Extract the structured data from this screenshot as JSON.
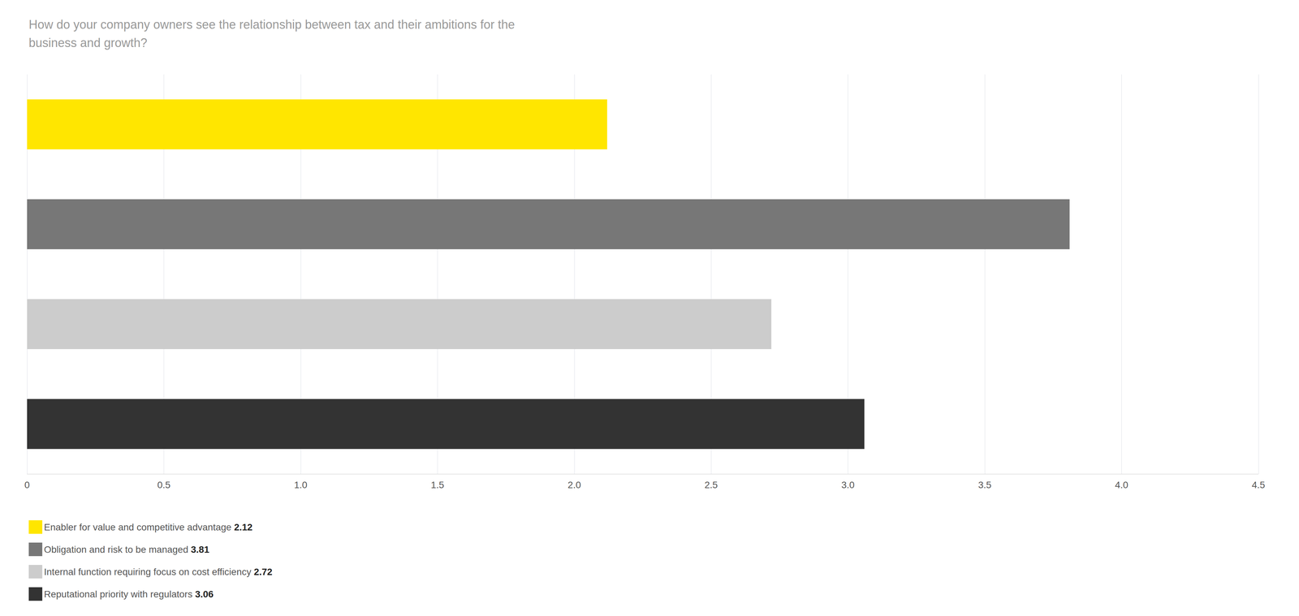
{
  "chart_data": {
    "type": "bar",
    "orientation": "horizontal",
    "title": "How do your company owners see the relationship between tax and their ambitions for the\nbusiness and growth?",
    "categories": [
      "Enabler for value and competitive advantage",
      "Obligation and risk to be managed",
      "Internal function requiring focus on cost efficiency",
      "Reputational priority with regulators"
    ],
    "values": [
      2.12,
      3.81,
      2.72,
      3.06
    ],
    "colors": [
      "#FFE600",
      "#777777",
      "#CCCCCC",
      "#333333"
    ],
    "xlim": [
      0,
      4.5
    ],
    "xticks": [
      0,
      0.5,
      {
        "value": 1,
        "label": "1.0"
      },
      1.5,
      {
        "value": 2,
        "label": "2.0"
      },
      2.5,
      {
        "value": 3,
        "label": "3.0"
      },
      3.5,
      {
        "value": 4,
        "label": "4.0"
      },
      4.5
    ],
    "grid": true,
    "legend": "bottom",
    "tick_labels": "x"
  }
}
